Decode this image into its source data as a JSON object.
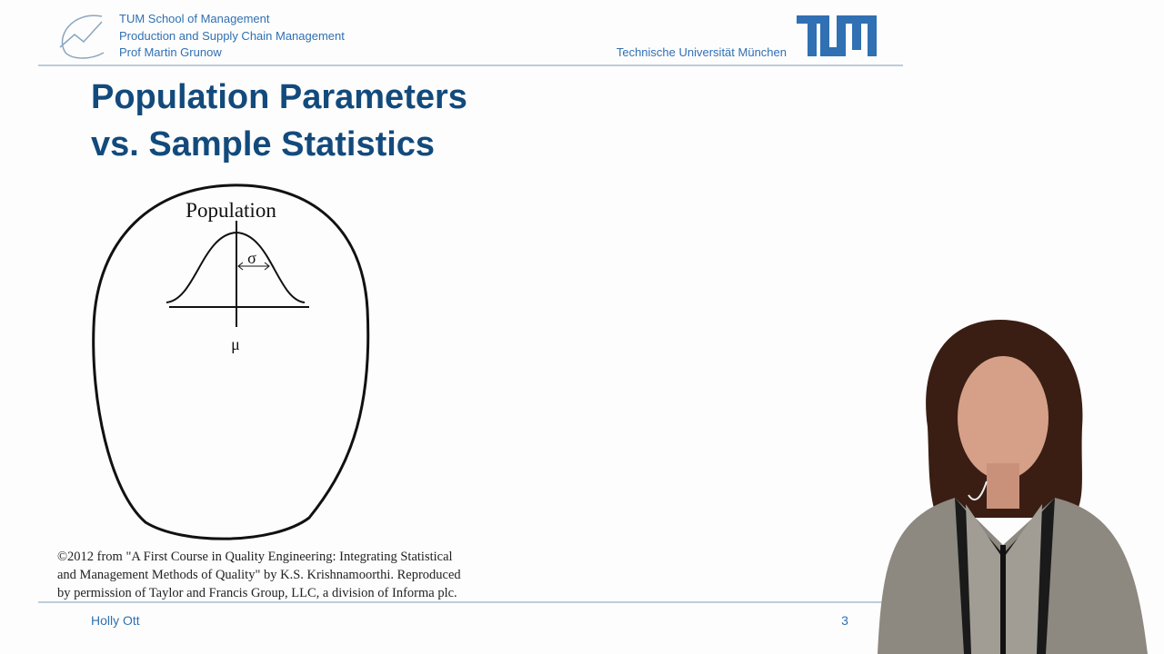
{
  "header": {
    "lines": [
      "TUM School of Management",
      "Production and Supply Chain Management",
      "Prof Martin Grunow"
    ],
    "university": "Technische Universität München"
  },
  "slide": {
    "title_lines": [
      "Population Parameters",
      "vs. Sample Statistics"
    ],
    "figure": {
      "label": "Population",
      "sigma": "σ",
      "mu": "μ"
    },
    "credit_lines": [
      "©2012 from \"A First Course in Quality Engineering: Integrating Statistical",
      "and Management Methods of Quality\" by K.S. Krishnamoorthi. Reproduced",
      "by permission of Taylor and Francis Group, LLC, a division of Informa plc."
    ]
  },
  "footer": {
    "speaker": "Holly Ott",
    "page": 3
  }
}
